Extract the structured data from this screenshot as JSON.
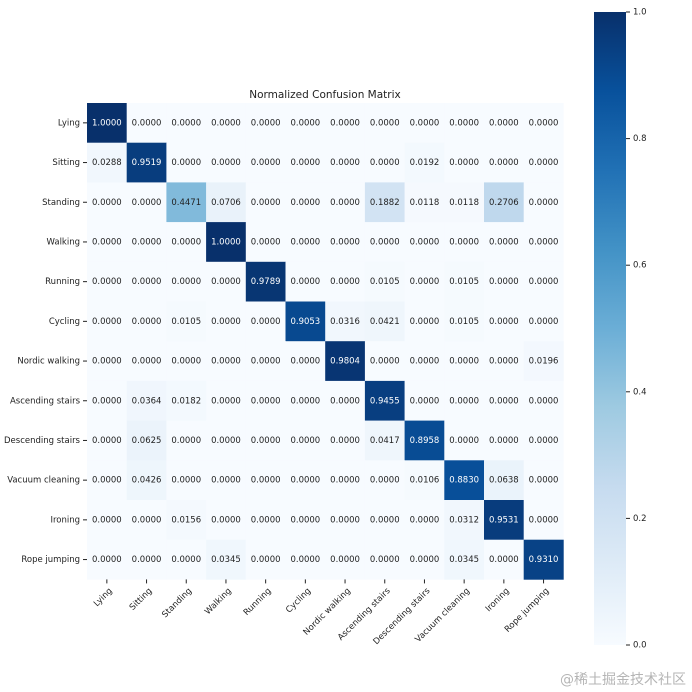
{
  "chart_data": {
    "type": "heatmap",
    "title": "Normalized Confusion Matrix",
    "categories": [
      "Lying",
      "Sitting",
      "Standing",
      "Walking",
      "Running",
      "Cycling",
      "Nordic walking",
      "Ascending stairs",
      "Descending stairs",
      "Vacuum cleaning",
      "Ironing",
      "Rope jumping"
    ],
    "values": [
      [
        1,
        0,
        0,
        0,
        0,
        0,
        0,
        0,
        0,
        0,
        0,
        0
      ],
      [
        0.0288,
        0.9519,
        0,
        0,
        0,
        0,
        0,
        0,
        0.0192,
        0,
        0,
        0
      ],
      [
        0,
        0,
        0.4471,
        0.0706,
        0,
        0,
        0,
        0.1882,
        0.0118,
        0.0118,
        0.2706,
        0
      ],
      [
        0,
        0,
        0,
        1,
        0,
        0,
        0,
        0,
        0,
        0,
        0,
        0
      ],
      [
        0,
        0,
        0,
        0,
        0.9789,
        0,
        0,
        0.0105,
        0,
        0.0105,
        0,
        0
      ],
      [
        0,
        0,
        0.0105,
        0,
        0,
        0.9053,
        0.0316,
        0.0421,
        0,
        0.0105,
        0,
        0
      ],
      [
        0,
        0,
        0,
        0,
        0,
        0,
        0.9804,
        0,
        0,
        0,
        0,
        0.0196
      ],
      [
        0,
        0.0364,
        0.0182,
        0,
        0,
        0,
        0,
        0.9455,
        0,
        0,
        0,
        0
      ],
      [
        0,
        0.0625,
        0,
        0,
        0,
        0,
        0,
        0.0417,
        0.8958,
        0,
        0,
        0
      ],
      [
        0,
        0.0426,
        0,
        0,
        0,
        0,
        0,
        0,
        0.0106,
        0.883,
        0.0638,
        0
      ],
      [
        0,
        0,
        0.0156,
        0,
        0,
        0,
        0,
        0,
        0,
        0.0312,
        0.9531,
        0
      ],
      [
        0,
        0,
        0,
        0.0345,
        0,
        0,
        0,
        0,
        0,
        0.0345,
        0,
        0.931
      ]
    ],
    "value_labels": [
      [
        "1.0000",
        "0.0000",
        "0.0000",
        "0.0000",
        "0.0000",
        "0.0000",
        "0.0000",
        "0.0000",
        "0.0000",
        "0.0000",
        "0.0000",
        "0.0000"
      ],
      [
        "0.0288",
        "0.9519",
        "0.0000",
        "0.0000",
        "0.0000",
        "0.0000",
        "0.0000",
        "0.0000",
        "0.0192",
        "0.0000",
        "0.0000",
        "0.0000"
      ],
      [
        "0.0000",
        "0.0000",
        "0.4471",
        "0.0706",
        "0.0000",
        "0.0000",
        "0.0000",
        "0.1882",
        "0.0118",
        "0.0118",
        "0.2706",
        "0.0000"
      ],
      [
        "0.0000",
        "0.0000",
        "0.0000",
        "1.0000",
        "0.0000",
        "0.0000",
        "0.0000",
        "0.0000",
        "0.0000",
        "0.0000",
        "0.0000",
        "0.0000"
      ],
      [
        "0.0000",
        "0.0000",
        "0.0000",
        "0.0000",
        "0.9789",
        "0.0000",
        "0.0000",
        "0.0105",
        "0.0000",
        "0.0105",
        "0.0000",
        "0.0000"
      ],
      [
        "0.0000",
        "0.0000",
        "0.0105",
        "0.0000",
        "0.0000",
        "0.9053",
        "0.0316",
        "0.0421",
        "0.0000",
        "0.0105",
        "0.0000",
        "0.0000"
      ],
      [
        "0.0000",
        "0.0000",
        "0.0000",
        "0.0000",
        "0.0000",
        "0.0000",
        "0.9804",
        "0.0000",
        "0.0000",
        "0.0000",
        "0.0000",
        "0.0196"
      ],
      [
        "0.0000",
        "0.0364",
        "0.0182",
        "0.0000",
        "0.0000",
        "0.0000",
        "0.0000",
        "0.9455",
        "0.0000",
        "0.0000",
        "0.0000",
        "0.0000"
      ],
      [
        "0.0000",
        "0.0625",
        "0.0000",
        "0.0000",
        "0.0000",
        "0.0000",
        "0.0000",
        "0.0417",
        "0.8958",
        "0.0000",
        "0.0000",
        "0.0000"
      ],
      [
        "0.0000",
        "0.0426",
        "0.0000",
        "0.0000",
        "0.0000",
        "0.0000",
        "0.0000",
        "0.0000",
        "0.0106",
        "0.8830",
        "0.0638",
        "0.0000"
      ],
      [
        "0.0000",
        "0.0000",
        "0.0156",
        "0.0000",
        "0.0000",
        "0.0000",
        "0.0000",
        "0.0000",
        "0.0000",
        "0.0312",
        "0.9531",
        "0.0000"
      ],
      [
        "0.0000",
        "0.0000",
        "0.0000",
        "0.0345",
        "0.0000",
        "0.0000",
        "0.0000",
        "0.0000",
        "0.0000",
        "0.0345",
        "0.0000",
        "0.9310"
      ]
    ],
    "colormap": "Blues",
    "clim": [
      0,
      1
    ],
    "cticks": [
      {
        "value": 0,
        "label": "0.0"
      },
      0.2,
      0.4,
      0.6,
      0.8,
      {
        "value": 1,
        "label": "1.0"
      }
    ]
  },
  "watermark": "@稀土掘金技术社区"
}
